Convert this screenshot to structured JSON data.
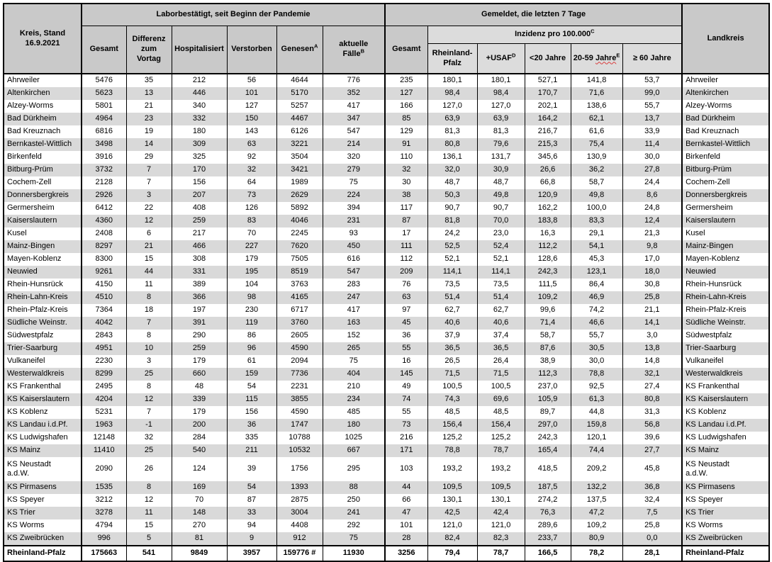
{
  "colors": {
    "header_bg": "#c9c9c9",
    "subheader_bg": "#dcdcdc",
    "stripe_bg": "#d9d9d9",
    "border": "#000000",
    "spellcheck_underline": "#d93b3b"
  },
  "table": {
    "header": {
      "kreis": "Kreis, Stand\n16.9.2021",
      "labor_group": "Laborbestätigt, seit Beginn der Pandemie",
      "gemeldet_group": "Gemeldet, die letzten 7 Tage",
      "landkreis": "Landkreis",
      "gesamt": "Gesamt",
      "differenz": "Differenz\nzum\nVortag",
      "hospitalisiert": "Hospitalisiert",
      "verstorben": "Verstorben",
      "genesen": {
        "label": "Genesen",
        "sup": "A"
      },
      "aktuelle": {
        "label": "aktuelle\nFälle",
        "sup": "B"
      },
      "gesamt7": "Gesamt",
      "inzidenz": {
        "label": "Inzidenz pro 100.000",
        "sup": "C"
      },
      "inz_rlp": "Rheinland-Pfalz",
      "inz_usaf": {
        "label": "+USAF",
        "sup": "D"
      },
      "inz_u20": "<20 Jahre",
      "inz_2059": {
        "prefix": "20-59 ",
        "wavy": "Jahre",
        "sup": "E"
      },
      "inz_60": "≥ 60 Jahre"
    },
    "rows": [
      {
        "name": "Ahrweiler",
        "gesamt": "5476",
        "diff": "35",
        "hosp": "212",
        "verstorben": "56",
        "genesen": "4644",
        "aktuelle": "776",
        "gesamt7": "235",
        "inz_rlp": "180,1",
        "inz_usaf": "180,1",
        "inz_u20": "527,1",
        "inz_2059": "141,8",
        "inz_60": "53,7"
      },
      {
        "name": "Altenkirchen",
        "gesamt": "5623",
        "diff": "13",
        "hosp": "446",
        "verstorben": "101",
        "genesen": "5170",
        "aktuelle": "352",
        "gesamt7": "127",
        "inz_rlp": "98,4",
        "inz_usaf": "98,4",
        "inz_u20": "170,7",
        "inz_2059": "71,6",
        "inz_60": "99,0"
      },
      {
        "name": "Alzey-Worms",
        "gesamt": "5801",
        "diff": "21",
        "hosp": "340",
        "verstorben": "127",
        "genesen": "5257",
        "aktuelle": "417",
        "gesamt7": "166",
        "inz_rlp": "127,0",
        "inz_usaf": "127,0",
        "inz_u20": "202,1",
        "inz_2059": "138,6",
        "inz_60": "55,7"
      },
      {
        "name": "Bad Dürkheim",
        "gesamt": "4964",
        "diff": "23",
        "hosp": "332",
        "verstorben": "150",
        "genesen": "4467",
        "aktuelle": "347",
        "gesamt7": "85",
        "inz_rlp": "63,9",
        "inz_usaf": "63,9",
        "inz_u20": "164,2",
        "inz_2059": "62,1",
        "inz_60": "13,7"
      },
      {
        "name": "Bad Kreuznach",
        "gesamt": "6816",
        "diff": "19",
        "hosp": "180",
        "verstorben": "143",
        "genesen": "6126",
        "aktuelle": "547",
        "gesamt7": "129",
        "inz_rlp": "81,3",
        "inz_usaf": "81,3",
        "inz_u20": "216,7",
        "inz_2059": "61,6",
        "inz_60": "33,9"
      },
      {
        "name": "Bernkastel-Wittlich",
        "gesamt": "3498",
        "diff": "14",
        "hosp": "309",
        "verstorben": "63",
        "genesen": "3221",
        "aktuelle": "214",
        "gesamt7": "91",
        "inz_rlp": "80,8",
        "inz_usaf": "79,6",
        "inz_u20": "215,3",
        "inz_2059": "75,4",
        "inz_60": "11,4"
      },
      {
        "name": "Birkenfeld",
        "gesamt": "3916",
        "diff": "29",
        "hosp": "325",
        "verstorben": "92",
        "genesen": "3504",
        "aktuelle": "320",
        "gesamt7": "110",
        "inz_rlp": "136,1",
        "inz_usaf": "131,7",
        "inz_u20": "345,6",
        "inz_2059": "130,9",
        "inz_60": "30,0"
      },
      {
        "name": "Bitburg-Prüm",
        "gesamt": "3732",
        "diff": "7",
        "hosp": "170",
        "verstorben": "32",
        "genesen": "3421",
        "aktuelle": "279",
        "gesamt7": "32",
        "inz_rlp": "32,0",
        "inz_usaf": "30,9",
        "inz_u20": "26,6",
        "inz_2059": "36,2",
        "inz_60": "27,8"
      },
      {
        "name": "Cochem-Zell",
        "gesamt": "2128",
        "diff": "7",
        "hosp": "156",
        "verstorben": "64",
        "genesen": "1989",
        "aktuelle": "75",
        "gesamt7": "30",
        "inz_rlp": "48,7",
        "inz_usaf": "48,7",
        "inz_u20": "66,8",
        "inz_2059": "58,7",
        "inz_60": "24,4"
      },
      {
        "name": "Donnersbergkreis",
        "gesamt": "2926",
        "diff": "3",
        "hosp": "207",
        "verstorben": "73",
        "genesen": "2629",
        "aktuelle": "224",
        "gesamt7": "38",
        "inz_rlp": "50,3",
        "inz_usaf": "49,8",
        "inz_u20": "120,9",
        "inz_2059": "49,8",
        "inz_60": "8,6"
      },
      {
        "name": "Germersheim",
        "gesamt": "6412",
        "diff": "22",
        "hosp": "408",
        "verstorben": "126",
        "genesen": "5892",
        "aktuelle": "394",
        "gesamt7": "117",
        "inz_rlp": "90,7",
        "inz_usaf": "90,7",
        "inz_u20": "162,2",
        "inz_2059": "100,0",
        "inz_60": "24,8"
      },
      {
        "name": "Kaiserslautern",
        "gesamt": "4360",
        "diff": "12",
        "hosp": "259",
        "verstorben": "83",
        "genesen": "4046",
        "aktuelle": "231",
        "gesamt7": "87",
        "inz_rlp": "81,8",
        "inz_usaf": "70,0",
        "inz_u20": "183,8",
        "inz_2059": "83,3",
        "inz_60": "12,4"
      },
      {
        "name": "Kusel",
        "gesamt": "2408",
        "diff": "6",
        "hosp": "217",
        "verstorben": "70",
        "genesen": "2245",
        "aktuelle": "93",
        "gesamt7": "17",
        "inz_rlp": "24,2",
        "inz_usaf": "23,0",
        "inz_u20": "16,3",
        "inz_2059": "29,1",
        "inz_60": "21,3"
      },
      {
        "name": "Mainz-Bingen",
        "gesamt": "8297",
        "diff": "21",
        "hosp": "466",
        "verstorben": "227",
        "genesen": "7620",
        "aktuelle": "450",
        "gesamt7": "111",
        "inz_rlp": "52,5",
        "inz_usaf": "52,4",
        "inz_u20": "112,2",
        "inz_2059": "54,1",
        "inz_60": "9,8"
      },
      {
        "name": "Mayen-Koblenz",
        "gesamt": "8300",
        "diff": "15",
        "hosp": "308",
        "verstorben": "179",
        "genesen": "7505",
        "aktuelle": "616",
        "gesamt7": "112",
        "inz_rlp": "52,1",
        "inz_usaf": "52,1",
        "inz_u20": "128,6",
        "inz_2059": "45,3",
        "inz_60": "17,0"
      },
      {
        "name": "Neuwied",
        "gesamt": "9261",
        "diff": "44",
        "hosp": "331",
        "verstorben": "195",
        "genesen": "8519",
        "aktuelle": "547",
        "gesamt7": "209",
        "inz_rlp": "114,1",
        "inz_usaf": "114,1",
        "inz_u20": "242,3",
        "inz_2059": "123,1",
        "inz_60": "18,0"
      },
      {
        "name": "Rhein-Hunsrück",
        "gesamt": "4150",
        "diff": "11",
        "hosp": "389",
        "verstorben": "104",
        "genesen": "3763",
        "aktuelle": "283",
        "gesamt7": "76",
        "inz_rlp": "73,5",
        "inz_usaf": "73,5",
        "inz_u20": "111,5",
        "inz_2059": "86,4",
        "inz_60": "30,8"
      },
      {
        "name": "Rhein-Lahn-Kreis",
        "gesamt": "4510",
        "diff": "8",
        "hosp": "366",
        "verstorben": "98",
        "genesen": "4165",
        "aktuelle": "247",
        "gesamt7": "63",
        "inz_rlp": "51,4",
        "inz_usaf": "51,4",
        "inz_u20": "109,2",
        "inz_2059": "46,9",
        "inz_60": "25,8"
      },
      {
        "name": "Rhein-Pfalz-Kreis",
        "gesamt": "7364",
        "diff": "18",
        "hosp": "197",
        "verstorben": "230",
        "genesen": "6717",
        "aktuelle": "417",
        "gesamt7": "97",
        "inz_rlp": "62,7",
        "inz_usaf": "62,7",
        "inz_u20": "99,6",
        "inz_2059": "74,2",
        "inz_60": "21,1"
      },
      {
        "name": "Südliche Weinstr.",
        "gesamt": "4042",
        "diff": "7",
        "hosp": "391",
        "verstorben": "119",
        "genesen": "3760",
        "aktuelle": "163",
        "gesamt7": "45",
        "inz_rlp": "40,6",
        "inz_usaf": "40,6",
        "inz_u20": "71,4",
        "inz_2059": "46,6",
        "inz_60": "14,1"
      },
      {
        "name": "Südwestpfalz",
        "gesamt": "2843",
        "diff": "8",
        "hosp": "290",
        "verstorben": "86",
        "genesen": "2605",
        "aktuelle": "152",
        "gesamt7": "36",
        "inz_rlp": "37,9",
        "inz_usaf": "37,4",
        "inz_u20": "58,7",
        "inz_2059": "55,7",
        "inz_60": "3,0"
      },
      {
        "name": "Trier-Saarburg",
        "gesamt": "4951",
        "diff": "10",
        "hosp": "259",
        "verstorben": "96",
        "genesen": "4590",
        "aktuelle": "265",
        "gesamt7": "55",
        "inz_rlp": "36,5",
        "inz_usaf": "36,5",
        "inz_u20": "87,6",
        "inz_2059": "30,5",
        "inz_60": "13,8"
      },
      {
        "name": "Vulkaneifel",
        "gesamt": "2230",
        "diff": "3",
        "hosp": "179",
        "verstorben": "61",
        "genesen": "2094",
        "aktuelle": "75",
        "gesamt7": "16",
        "inz_rlp": "26,5",
        "inz_usaf": "26,4",
        "inz_u20": "38,9",
        "inz_2059": "30,0",
        "inz_60": "14,8"
      },
      {
        "name": "Westerwaldkreis",
        "gesamt": "8299",
        "diff": "25",
        "hosp": "660",
        "verstorben": "159",
        "genesen": "7736",
        "aktuelle": "404",
        "gesamt7": "145",
        "inz_rlp": "71,5",
        "inz_usaf": "71,5",
        "inz_u20": "112,3",
        "inz_2059": "78,8",
        "inz_60": "32,1"
      },
      {
        "name": "KS Frankenthal",
        "gesamt": "2495",
        "diff": "8",
        "hosp": "48",
        "verstorben": "54",
        "genesen": "2231",
        "aktuelle": "210",
        "gesamt7": "49",
        "inz_rlp": "100,5",
        "inz_usaf": "100,5",
        "inz_u20": "237,0",
        "inz_2059": "92,5",
        "inz_60": "27,4"
      },
      {
        "name": "KS Kaiserslautern",
        "gesamt": "4204",
        "diff": "12",
        "hosp": "339",
        "verstorben": "115",
        "genesen": "3855",
        "aktuelle": "234",
        "gesamt7": "74",
        "inz_rlp": "74,3",
        "inz_usaf": "69,6",
        "inz_u20": "105,9",
        "inz_2059": "61,3",
        "inz_60": "80,8"
      },
      {
        "name": "KS Koblenz",
        "gesamt": "5231",
        "diff": "7",
        "hosp": "179",
        "verstorben": "156",
        "genesen": "4590",
        "aktuelle": "485",
        "gesamt7": "55",
        "inz_rlp": "48,5",
        "inz_usaf": "48,5",
        "inz_u20": "89,7",
        "inz_2059": "44,8",
        "inz_60": "31,3"
      },
      {
        "name": "KS Landau i.d.Pf.",
        "gesamt": "1963",
        "diff": "-1",
        "hosp": "200",
        "verstorben": "36",
        "genesen": "1747",
        "aktuelle": "180",
        "gesamt7": "73",
        "inz_rlp": "156,4",
        "inz_usaf": "156,4",
        "inz_u20": "297,0",
        "inz_2059": "159,8",
        "inz_60": "56,8"
      },
      {
        "name": "KS Ludwigshafen",
        "gesamt": "12148",
        "diff": "32",
        "hosp": "284",
        "verstorben": "335",
        "genesen": "10788",
        "aktuelle": "1025",
        "gesamt7": "216",
        "inz_rlp": "125,2",
        "inz_usaf": "125,2",
        "inz_u20": "242,3",
        "inz_2059": "120,1",
        "inz_60": "39,6"
      },
      {
        "name": "KS Mainz",
        "gesamt": "11410",
        "diff": "25",
        "hosp": "540",
        "verstorben": "211",
        "genesen": "10532",
        "aktuelle": "667",
        "gesamt7": "171",
        "inz_rlp": "78,8",
        "inz_usaf": "78,7",
        "inz_u20": "165,4",
        "inz_2059": "74,4",
        "inz_60": "27,7"
      },
      {
        "name": "KS Neustadt\na.d.W.",
        "gesamt": "2090",
        "diff": "26",
        "hosp": "124",
        "verstorben": "39",
        "genesen": "1756",
        "aktuelle": "295",
        "gesamt7": "103",
        "inz_rlp": "193,2",
        "inz_usaf": "193,2",
        "inz_u20": "418,5",
        "inz_2059": "209,2",
        "inz_60": "45,8"
      },
      {
        "name": "KS Pirmasens",
        "gesamt": "1535",
        "diff": "8",
        "hosp": "169",
        "verstorben": "54",
        "genesen": "1393",
        "aktuelle": "88",
        "gesamt7": "44",
        "inz_rlp": "109,5",
        "inz_usaf": "109,5",
        "inz_u20": "187,5",
        "inz_2059": "132,2",
        "inz_60": "36,8"
      },
      {
        "name": "KS Speyer",
        "gesamt": "3212",
        "diff": "12",
        "hosp": "70",
        "verstorben": "87",
        "genesen": "2875",
        "aktuelle": "250",
        "gesamt7": "66",
        "inz_rlp": "130,1",
        "inz_usaf": "130,1",
        "inz_u20": "274,2",
        "inz_2059": "137,5",
        "inz_60": "32,4"
      },
      {
        "name": "KS Trier",
        "gesamt": "3278",
        "diff": "11",
        "hosp": "148",
        "verstorben": "33",
        "genesen": "3004",
        "aktuelle": "241",
        "gesamt7": "47",
        "inz_rlp": "42,5",
        "inz_usaf": "42,4",
        "inz_u20": "76,3",
        "inz_2059": "47,2",
        "inz_60": "7,5"
      },
      {
        "name": "KS Worms",
        "gesamt": "4794",
        "diff": "15",
        "hosp": "270",
        "verstorben": "94",
        "genesen": "4408",
        "aktuelle": "292",
        "gesamt7": "101",
        "inz_rlp": "121,0",
        "inz_usaf": "121,0",
        "inz_u20": "289,6",
        "inz_2059": "109,2",
        "inz_60": "25,8"
      },
      {
        "name": "KS Zweibrücken",
        "gesamt": "996",
        "diff": "5",
        "hosp": "81",
        "verstorben": "9",
        "genesen": "912",
        "aktuelle": "75",
        "gesamt7": "28",
        "inz_rlp": "82,4",
        "inz_usaf": "82,3",
        "inz_u20": "233,7",
        "inz_2059": "80,9",
        "inz_60": "0,0"
      }
    ],
    "total": {
      "name": "Rheinland-Pfalz",
      "gesamt": "175663",
      "diff": "541",
      "hosp": "9849",
      "verstorben": "3957",
      "genesen": "159776 #",
      "aktuelle": "11930",
      "gesamt7": "3256",
      "inz_rlp": "79,4",
      "inz_usaf": "78,7",
      "inz_u20": "166,5",
      "inz_2059": "78,2",
      "inz_60": "28,1"
    }
  }
}
